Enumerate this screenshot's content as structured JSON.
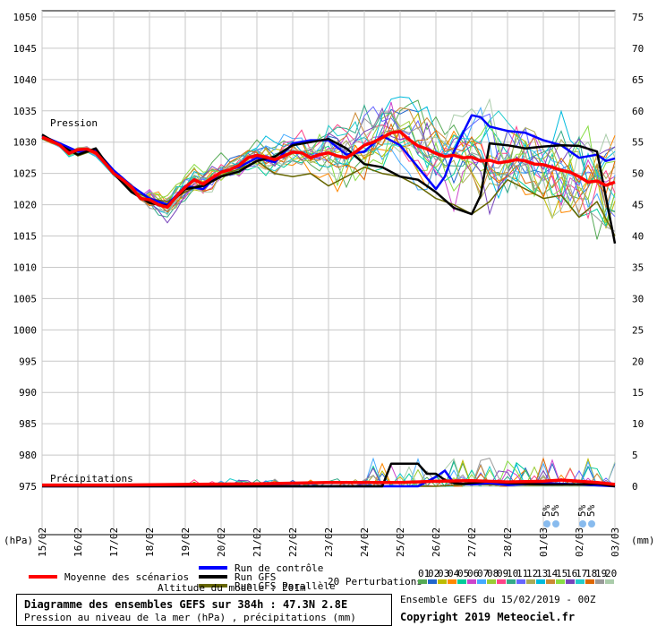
{
  "chart_data": {
    "type": "line",
    "title": "Diagramme des ensembles GEFS sur 384h : 47.3N 2.8E",
    "subtitle": "Pression au niveau de la mer (hPa) , précipitations (mm)",
    "left_axis": {
      "unit": "(hPa)",
      "ticks": [
        975,
        980,
        985,
        990,
        995,
        1000,
        1005,
        1010,
        1015,
        1020,
        1025,
        1030,
        1035,
        1040,
        1045,
        1050
      ],
      "range": [
        975,
        1050
      ]
    },
    "right_axis": {
      "unit": "(mm)",
      "ticks": [
        0,
        5,
        10,
        15,
        20,
        25,
        30,
        35,
        40,
        45,
        50,
        55,
        60,
        65,
        70,
        75
      ],
      "range": [
        0,
        75
      ]
    },
    "x_labels": [
      "15/02",
      "16/02",
      "17/02",
      "18/02",
      "19/02",
      "20/02",
      "21/02",
      "22/02",
      "23/02",
      "24/02",
      "25/02",
      "26/02",
      "27/02",
      "28/02",
      "01/03",
      "02/03",
      "03/03"
    ],
    "grid": true,
    "panel_labels": {
      "pressure": "Pression",
      "precip": "Précipitations"
    },
    "snow_marks": [
      {
        "label": "5%",
        "day": 14.3
      },
      {
        "label": "5%",
        "day": 14.55
      },
      {
        "label": "5%",
        "day": 15.3
      },
      {
        "label": "5%",
        "day": 15.55
      }
    ],
    "mean_pressure": [
      [
        0,
        1030.8
      ],
      [
        0.25,
        1030.2
      ],
      [
        0.5,
        1029.5
      ],
      [
        0.75,
        1028.2
      ],
      [
        1,
        1028.8
      ],
      [
        1.25,
        1028.9
      ],
      [
        1.5,
        1028.3
      ],
      [
        1.75,
        1026.7
      ],
      [
        2,
        1025.0
      ],
      [
        2.25,
        1024.0
      ],
      [
        2.5,
        1022.8
      ],
      [
        2.75,
        1021.0
      ],
      [
        3,
        1020.8
      ],
      [
        3.25,
        1020.0
      ],
      [
        3.5,
        1019.6
      ],
      [
        3.75,
        1021.3
      ],
      [
        4,
        1022.8
      ],
      [
        4.25,
        1024.0
      ],
      [
        4.5,
        1023.3
      ],
      [
        4.75,
        1024.3
      ],
      [
        5,
        1025.2
      ],
      [
        5.25,
        1025.6
      ],
      [
        5.5,
        1026.3
      ],
      [
        5.75,
        1027.5
      ],
      [
        6,
        1027.9
      ],
      [
        6.25,
        1027.6
      ],
      [
        6.5,
        1027.2
      ],
      [
        6.75,
        1027.8
      ],
      [
        7,
        1028.4
      ],
      [
        7.25,
        1028.3
      ],
      [
        7.5,
        1027.5
      ],
      [
        7.75,
        1028.0
      ],
      [
        8,
        1028.3
      ],
      [
        8.25,
        1027.8
      ],
      [
        8.5,
        1027.5
      ],
      [
        8.75,
        1028.4
      ],
      [
        9,
        1029.5
      ],
      [
        9.25,
        1030.0
      ],
      [
        9.5,
        1030.7
      ],
      [
        9.75,
        1031.5
      ],
      [
        10,
        1031.7
      ],
      [
        10.25,
        1030.4
      ],
      [
        10.5,
        1029.4
      ],
      [
        10.75,
        1028.9
      ],
      [
        11,
        1028.2
      ],
      [
        11.25,
        1027.7
      ],
      [
        11.5,
        1027.9
      ],
      [
        11.75,
        1027.5
      ],
      [
        12,
        1027.6
      ],
      [
        12.25,
        1027.0
      ],
      [
        12.5,
        1027.1
      ],
      [
        12.75,
        1026.7
      ],
      [
        13,
        1026.9
      ],
      [
        13.25,
        1027.2
      ],
      [
        13.5,
        1027.0
      ],
      [
        13.75,
        1026.5
      ],
      [
        14,
        1026.4
      ],
      [
        14.25,
        1026.0
      ],
      [
        14.5,
        1025.5
      ],
      [
        14.75,
        1025.2
      ],
      [
        15,
        1024.5
      ],
      [
        15.25,
        1023.6
      ],
      [
        15.5,
        1023.8
      ],
      [
        15.75,
        1023.1
      ],
      [
        16,
        1023.6
      ]
    ],
    "control_pressure": [
      [
        0,
        1031.0
      ],
      [
        0.5,
        1029.8
      ],
      [
        1,
        1028.5
      ],
      [
        1.5,
        1028.7
      ],
      [
        2,
        1025.5
      ],
      [
        2.5,
        1023.0
      ],
      [
        3,
        1021.0
      ],
      [
        3.5,
        1020.0
      ],
      [
        4,
        1023.0
      ],
      [
        4.5,
        1022.5
      ],
      [
        5,
        1025.3
      ],
      [
        5.5,
        1026.0
      ],
      [
        6,
        1027.5
      ],
      [
        6.5,
        1026.8
      ],
      [
        7,
        1029.8
      ],
      [
        7.5,
        1030.3
      ],
      [
        8,
        1030.3
      ],
      [
        8.5,
        1028.0
      ],
      [
        9,
        1028.5
      ],
      [
        9.5,
        1031.0
      ],
      [
        10,
        1029.5
      ],
      [
        10.5,
        1026.0
      ],
      [
        11,
        1022.5
      ],
      [
        11.25,
        1024.5
      ],
      [
        11.5,
        1028.5
      ],
      [
        12,
        1034.3
      ],
      [
        12.25,
        1034.0
      ],
      [
        12.5,
        1032.5
      ],
      [
        13,
        1031.8
      ],
      [
        13.5,
        1031.5
      ],
      [
        14,
        1030.3
      ],
      [
        14.5,
        1029.5
      ],
      [
        15,
        1027.5
      ],
      [
        15.5,
        1028.0
      ],
      [
        15.75,
        1027.0
      ],
      [
        16,
        1027.4
      ]
    ],
    "gfs_pressure": [
      [
        0,
        1031.2
      ],
      [
        0.5,
        1029.5
      ],
      [
        1,
        1028.0
      ],
      [
        1.5,
        1029.0
      ],
      [
        2,
        1025.0
      ],
      [
        2.5,
        1022.0
      ],
      [
        3,
        1020.3
      ],
      [
        3.5,
        1019.8
      ],
      [
        4,
        1022.5
      ],
      [
        4.5,
        1023.0
      ],
      [
        5,
        1024.5
      ],
      [
        5.5,
        1025.3
      ],
      [
        6,
        1027.0
      ],
      [
        6.5,
        1027.7
      ],
      [
        7,
        1029.5
      ],
      [
        7.5,
        1030.0
      ],
      [
        8,
        1030.5
      ],
      [
        8.5,
        1029.0
      ],
      [
        9,
        1026.5
      ],
      [
        9.5,
        1026.0
      ],
      [
        10,
        1024.5
      ],
      [
        10.5,
        1024.0
      ],
      [
        11,
        1022.0
      ],
      [
        11.5,
        1019.5
      ],
      [
        12,
        1018.5
      ],
      [
        12.25,
        1021.5
      ],
      [
        12.5,
        1029.8
      ],
      [
        13,
        1029.5
      ],
      [
        13.5,
        1029.0
      ],
      [
        14,
        1029.3
      ],
      [
        14.5,
        1029.5
      ],
      [
        15,
        1029.4
      ],
      [
        15.5,
        1028.5
      ],
      [
        16,
        1013.8
      ]
    ],
    "parallel_pressure": [
      [
        0,
        1030.5
      ],
      [
        0.5,
        1029.6
      ],
      [
        1,
        1027.8
      ],
      [
        1.5,
        1028.8
      ],
      [
        2,
        1025.5
      ],
      [
        2.5,
        1022.3
      ],
      [
        3,
        1021.0
      ],
      [
        3.5,
        1020.5
      ],
      [
        4,
        1022.0
      ],
      [
        4.5,
        1023.5
      ],
      [
        5,
        1024.7
      ],
      [
        5.5,
        1025.7
      ],
      [
        6,
        1027.0
      ],
      [
        6.5,
        1025.0
      ],
      [
        7,
        1024.5
      ],
      [
        7.5,
        1025.0
      ],
      [
        8,
        1023.0
      ],
      [
        8.5,
        1024.5
      ],
      [
        9,
        1026.0
      ],
      [
        9.5,
        1025.0
      ],
      [
        10,
        1024.5
      ],
      [
        10.5,
        1023.0
      ],
      [
        11,
        1021.0
      ],
      [
        11.5,
        1020.0
      ],
      [
        12,
        1018.5
      ],
      [
        12.5,
        1020.5
      ],
      [
        13,
        1024.0
      ],
      [
        13.5,
        1022.5
      ],
      [
        14,
        1021.0
      ],
      [
        14.5,
        1021.5
      ],
      [
        15,
        1018.0
      ],
      [
        15.5,
        1020.5
      ],
      [
        16,
        1015.0
      ]
    ],
    "mean_precip": [
      [
        0,
        0.2
      ],
      [
        2,
        0.2
      ],
      [
        4,
        0.3
      ],
      [
        6,
        0.4
      ],
      [
        8,
        0.6
      ],
      [
        10,
        0.6
      ],
      [
        11,
        0.8
      ],
      [
        12,
        0.9
      ],
      [
        13,
        0.7
      ],
      [
        14,
        0.8
      ],
      [
        14.5,
        1.0
      ],
      [
        15,
        0.8
      ],
      [
        15.5,
        0.6
      ],
      [
        16,
        0.3
      ]
    ],
    "gfs_precip": [
      [
        0,
        0
      ],
      [
        9.5,
        0
      ],
      [
        9.75,
        3.6
      ],
      [
        10,
        3.6
      ],
      [
        10.25,
        3.6
      ],
      [
        10.5,
        3.6
      ],
      [
        10.75,
        2.0
      ],
      [
        11,
        2.0
      ],
      [
        11.25,
        1.0
      ],
      [
        11.5,
        0.5
      ],
      [
        11.75,
        0.4
      ],
      [
        12,
        0.5
      ],
      [
        12.5,
        0.8
      ],
      [
        13,
        0.5
      ],
      [
        14,
        0.3
      ],
      [
        15,
        0.3
      ],
      [
        15.5,
        0.4
      ],
      [
        16,
        0
      ]
    ],
    "control_precip": [
      [
        0,
        0
      ],
      [
        10.5,
        0
      ],
      [
        11,
        1.5
      ],
      [
        11.25,
        2.5
      ],
      [
        11.5,
        0.5
      ],
      [
        12,
        0.3
      ],
      [
        12.5,
        0.5
      ],
      [
        13,
        0.2
      ],
      [
        14,
        0.5
      ],
      [
        15,
        0.3
      ],
      [
        16,
        0
      ]
    ],
    "parallel_precip": [
      [
        0,
        0
      ],
      [
        4,
        0
      ],
      [
        4.25,
        0.6
      ],
      [
        4.5,
        0
      ],
      [
        11,
        0
      ],
      [
        12,
        0.3
      ],
      [
        13,
        0.2
      ],
      [
        15,
        0.2
      ],
      [
        16,
        0
      ]
    ],
    "legend": {
      "mean": "Moyenne des scénarios",
      "control": "Run de contrôle",
      "gfs": "Run GFS",
      "parallel": "Run GFS Parallèle",
      "perturbations": "20 Perturbations",
      "altitude": "Altitude du modèle : 201m"
    },
    "perturbation_ids": [
      "01",
      "02",
      "03",
      "04",
      "05",
      "06",
      "07",
      "08",
      "09",
      "10",
      "11",
      "12",
      "13",
      "14",
      "15",
      "16",
      "17",
      "18",
      "19",
      "20"
    ],
    "perturbation_colors": [
      "#55aa55",
      "#2266cc",
      "#bbbb00",
      "#ff8800",
      "#00cc99",
      "#cc44cc",
      "#44aaff",
      "#99cc33",
      "#ff4488",
      "#33aa88",
      "#6666ff",
      "#aaaa55",
      "#00bbdd",
      "#cc8833",
      "#88dd44",
      "#7744bb",
      "#22cccc",
      "#dd6600",
      "#999999",
      "#aaccaa"
    ],
    "series_colors": {
      "mean": "#ff0000",
      "control": "#0000ff",
      "gfs": "#000000",
      "parallel": "#666600"
    }
  },
  "footer": {
    "title": "Diagramme des ensembles GEFS sur 384h : 47.3N 2.8E",
    "subtitle": "Pression au niveau de la mer (hPa) , précipitations (mm)",
    "ensemble": "Ensemble GEFS du 15/02/2019 - 00Z",
    "copyright": "Copyright 2019 Meteociel.fr"
  }
}
